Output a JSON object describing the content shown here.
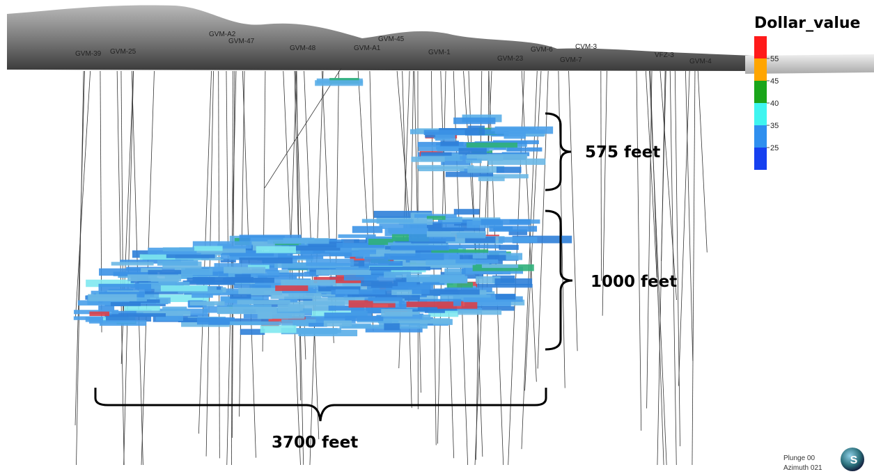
{
  "legend": {
    "title": "Dollar_value",
    "colors": [
      "#ff1a1a",
      "#ffa500",
      "#1aa51a",
      "#3ff5f0",
      "#2f8fef",
      "#1640f0"
    ],
    "labels": [
      55,
      45,
      40,
      35,
      25
    ]
  },
  "annotations": {
    "upper_height": "575 feet",
    "lower_height": "1000 feet",
    "width": "3700 feet"
  },
  "view": {
    "plunge": "Plunge 00",
    "azimuth": "Azimuth 021",
    "compass": "S"
  },
  "hole_labels": [
    "GVM-39",
    "GVM-25",
    "GVM-A2",
    "GVM-47",
    "GVM-45",
    "GVM-48",
    "GVM-A1",
    "GVM-1",
    "GVM-23",
    "GVM-6",
    "CVM-3",
    "GVM-7",
    "VFZ-3",
    "GVM-4"
  ]
}
